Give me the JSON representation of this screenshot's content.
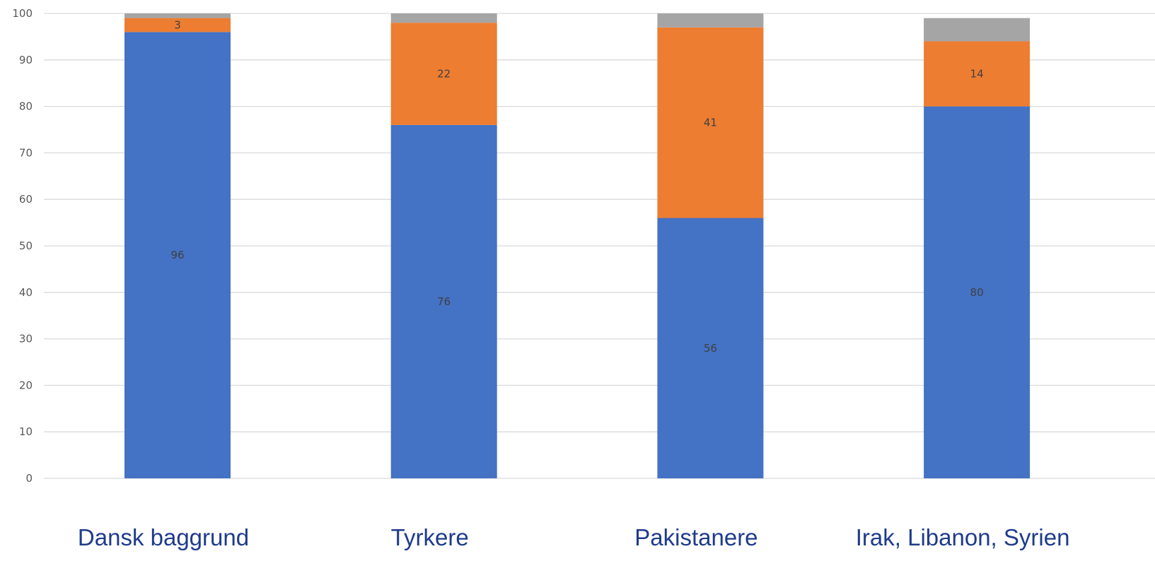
{
  "colors": {
    "series_1": "#4472C4",
    "series_2": "#ED7D31",
    "series_3": "#A5A5A5",
    "gridline": "#D9D9D9",
    "tick_text": "#595959",
    "data_label_text": "#404040",
    "category_text": "#1F3B8C"
  },
  "chart_data": {
    "type": "bar",
    "stacked": true,
    "orientation": "vertical",
    "categories": [
      "Dansk baggrund",
      "Tyrkere",
      "Pakistanere",
      "Irak, Libanon, Syrien"
    ],
    "series": [
      {
        "values": [
          96,
          76,
          56,
          80
        ],
        "labels": [
          "96",
          "76",
          "56",
          "80"
        ],
        "color": "#4472C4"
      },
      {
        "values": [
          3,
          22,
          41,
          14
        ],
        "labels": [
          "3",
          "22",
          "41",
          "14"
        ],
        "color": "#ED7D31"
      },
      {
        "values": [
          1,
          2,
          3,
          5
        ],
        "labels": [
          "",
          "",
          "",
          ""
        ],
        "color": "#A5A5A5"
      }
    ],
    "yticks": [
      "0",
      "10",
      "20",
      "30",
      "40",
      "50",
      "60",
      "70",
      "80",
      "90",
      "100"
    ],
    "ylim": [
      0,
      100
    ],
    "grid": true,
    "legend": "none",
    "title": "",
    "xlabel": "",
    "ylabel": ""
  }
}
